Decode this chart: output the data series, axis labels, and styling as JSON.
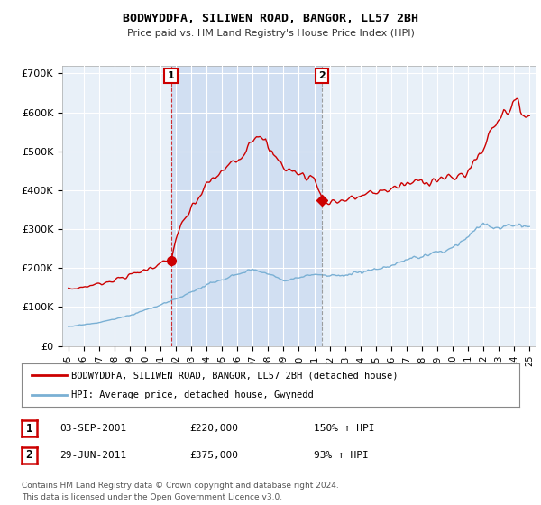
{
  "title": "BODWYDDFA, SILIWEN ROAD, BANGOR, LL57 2BH",
  "subtitle": "Price paid vs. HM Land Registry's House Price Index (HPI)",
  "ylabel_ticks": [
    "£0",
    "£100K",
    "£200K",
    "£300K",
    "£400K",
    "£500K",
    "£600K",
    "£700K"
  ],
  "ytick_vals": [
    0,
    100000,
    200000,
    300000,
    400000,
    500000,
    600000,
    700000
  ],
  "ylim": [
    0,
    720000
  ],
  "sale1_x": 2001.67,
  "sale1_price": 220000,
  "sale2_x": 2011.5,
  "sale2_price": 375000,
  "sale1_hpi_pct": "150% ↑ HPI",
  "sale2_hpi_pct": "93% ↑ HPI",
  "legend_line1": "BODWYDDFA, SILIWEN ROAD, BANGOR, LL57 2BH (detached house)",
  "legend_line2": "HPI: Average price, detached house, Gwynedd",
  "footer1": "Contains HM Land Registry data © Crown copyright and database right 2024.",
  "footer2": "This data is licensed under the Open Government Licence v3.0.",
  "red_color": "#cc0000",
  "blue_color": "#7ab0d4",
  "shade_color": "#ddeeff",
  "plot_bg": "#e8f0f8",
  "grid_color": "#ffffff",
  "xlim_left": 1994.6,
  "xlim_right": 2025.4
}
